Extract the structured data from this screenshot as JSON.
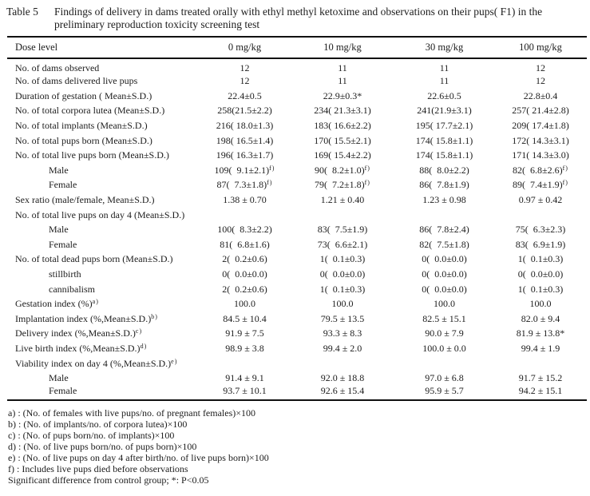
{
  "title": {
    "tag": "Table 5",
    "text": "Findings of delivery in dams treated orally with ethyl methyl ketoxime and observations on their pups( F1) in the preliminary reproduction toxicity screening test"
  },
  "table": {
    "dose_label": "Dose level",
    "columns": [
      "0 mg/kg",
      "10 mg/kg",
      "30 mg/kg",
      "100 mg/kg"
    ],
    "rows": [
      {
        "label": "No. of dams observed",
        "indent": false,
        "values": [
          "12",
          "11",
          "11",
          "12"
        ]
      },
      {
        "label": "No. of dams delivered live pups",
        "indent": false,
        "values": [
          "12",
          "11",
          "11",
          "12"
        ]
      },
      {
        "label": "Duration of gestation ( Mean±S.D.)",
        "indent": false,
        "values": [
          "22.4±0.5",
          "22.9±0.3*",
          "22.6±0.5",
          "22.8±0.4"
        ]
      },
      {
        "label": "No. of total corpora lutea (Mean±S.D.)",
        "indent": false,
        "values": [
          "258(21.5±2.2)",
          "234( 21.3±3.1)",
          "241(21.9±3.1)",
          "257( 21.4±2.8)"
        ]
      },
      {
        "label": "No. of total implants (Mean±S.D.)",
        "indent": false,
        "values": [
          "216( 18.0±1.3)",
          "183( 16.6±2.2)",
          "195( 17.7±2.1)",
          "209( 17.4±1.8)"
        ]
      },
      {
        "label": "No. of total pups born (Mean±S.D.)",
        "indent": false,
        "values": [
          "198( 16.5±1.4)",
          "170( 15.5±2.1)",
          "174( 15.8±1.1)",
          "172( 14.3±3.1)"
        ]
      },
      {
        "label": "No. of total live pups born (Mean±S.D.)",
        "indent": false,
        "values": [
          "196( 16.3±1.7)",
          "169( 15.4±2.2)",
          "174( 15.8±1.1)",
          "171( 14.3±3.0)"
        ]
      },
      {
        "label": "Male",
        "indent": true,
        "values": [
          "109(  9.1±2.1)^f)",
          "90(  8.2±1.0)^f)",
          "88(  8.0±2.2)",
          "82(  6.8±2.6)^f)"
        ]
      },
      {
        "label": "Female",
        "indent": true,
        "values": [
          "87(  7.3±1.8)^f)",
          "79(  7.2±1.8)^f)",
          "86(  7.8±1.9)",
          "89(  7.4±1.9)^f)"
        ]
      },
      {
        "label": "Sex ratio (male/female, Mean±S.D.)",
        "indent": false,
        "values": [
          "1.38 ± 0.70",
          "1.21 ± 0.40",
          "1.23 ± 0.98",
          "0.97 ± 0.42"
        ]
      },
      {
        "label": "No. of total live pups on day 4 (Mean±S.D.)",
        "indent": false,
        "values": [
          "",
          "",
          "",
          ""
        ]
      },
      {
        "label": "Male",
        "indent": true,
        "values": [
          "100(  8.3±2.2)",
          "83(  7.5±1.9)",
          "86(  7.8±2.4)",
          "75(  6.3±2.3)"
        ]
      },
      {
        "label": "Female",
        "indent": true,
        "values": [
          "81(  6.8±1.6)",
          "73(  6.6±2.1)",
          "82(  7.5±1.8)",
          "83(  6.9±1.9)"
        ]
      },
      {
        "label": "No. of total dead pups born (Mean±S.D.)",
        "indent": false,
        "values": [
          "2(  0.2±0.6)",
          "1(  0.1±0.3)",
          "0(  0.0±0.0)",
          "1(  0.1±0.3)"
        ]
      },
      {
        "label": "stillbirth",
        "indent": true,
        "values": [
          "0(  0.0±0.0)",
          "0(  0.0±0.0)",
          "0(  0.0±0.0)",
          "0(  0.0±0.0)"
        ]
      },
      {
        "label": "cannibalism",
        "indent": true,
        "values": [
          "2(  0.2±0.6)",
          "1(  0.1±0.3)",
          "0(  0.0±0.0)",
          "1(  0.1±0.3)"
        ]
      },
      {
        "label": "Gestation index (%)^a)",
        "indent": false,
        "values": [
          "100.0",
          "100.0",
          "100.0",
          "100.0"
        ]
      },
      {
        "label": "Implantation index (%,Mean±S.D.)^b)",
        "indent": false,
        "values": [
          "84.5 ± 10.4",
          "79.5 ± 13.5",
          "82.5 ± 15.1",
          "82.0 ± 9.4"
        ]
      },
      {
        "label": "Delivery index (%,Mean±S.D.)^c)",
        "indent": false,
        "values": [
          "91.9 ± 7.5",
          "93.3 ± 8.3",
          "90.0 ± 7.9",
          "81.9 ± 13.8*"
        ]
      },
      {
        "label": "Live birth index (%,Mean±S.D.)^d)",
        "indent": false,
        "values": [
          "98.9 ± 3.8",
          "99.4 ± 2.0",
          "100.0 ± 0.0",
          "99.4 ± 1.9"
        ]
      },
      {
        "label": "Viability index on day 4 (%,Mean±S.D.)^e)",
        "indent": false,
        "values": [
          "",
          "",
          "",
          ""
        ]
      },
      {
        "label": "Male",
        "indent": true,
        "values": [
          "91.4 ± 9.1",
          "92.0 ± 18.8",
          "97.0 ± 6.8",
          "91.7 ± 15.2"
        ]
      },
      {
        "label": "Female",
        "indent": true,
        "values": [
          "93.7 ± 10.1",
          "92.6 ± 15.4",
          "95.9 ± 5.7",
          "94.2 ± 15.1"
        ]
      }
    ]
  },
  "footnotes": [
    "a) : (No. of females with live pups/no. of pregnant females)×100",
    "b) : (No. of implants/no. of corpora lutea)×100",
    "c) : (No. of pups born/no. of implants)×100",
    "d) : (No. of live pups born/no. of pups born)×100",
    "e) : (No. of live pups on day 4 after birth/no. of live pups born)×100",
    "f) : Includes live pups died before observations",
    "Significant difference from control group; *: P<0.05"
  ]
}
